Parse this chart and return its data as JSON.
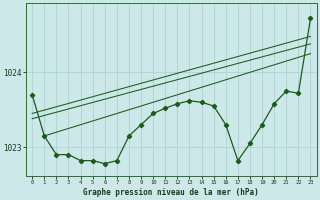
{
  "bg_color": "#cce8e8",
  "grid_color": "#aacece",
  "line_color": "#1a5c1a",
  "xlabel": "Graphe pression niveau de la mer (hPa)",
  "xlim": [
    -0.5,
    23.5
  ],
  "ylim": [
    1022.62,
    1024.92
  ],
  "yticks": [
    1023,
    1024
  ],
  "xticks": [
    0,
    1,
    2,
    3,
    4,
    5,
    6,
    7,
    8,
    9,
    10,
    11,
    12,
    13,
    14,
    15,
    16,
    17,
    18,
    19,
    20,
    21,
    22,
    23
  ],
  "hours": [
    0,
    1,
    2,
    3,
    4,
    5,
    6,
    7,
    8,
    9,
    10,
    11,
    12,
    13,
    14,
    15,
    16,
    17,
    18,
    19,
    20,
    21,
    22,
    23
  ],
  "line_main": [
    1023.7,
    1023.15,
    1022.9,
    1022.9,
    1022.82,
    1022.82,
    1022.78,
    1022.82,
    1023.15,
    1023.3,
    1023.45,
    1023.52,
    1023.58,
    1023.62,
    1023.6,
    1023.55,
    1023.3,
    1022.82,
    1023.05,
    1023.3,
    1023.58,
    1023.75,
    1023.72,
    1024.72
  ],
  "trend1_x": [
    0,
    23
  ],
  "trend1_y": [
    1023.45,
    1024.48
  ],
  "trend2_x": [
    0,
    23
  ],
  "trend2_y": [
    1023.38,
    1024.38
  ],
  "trend3_x": [
    1,
    23
  ],
  "trend3_y": [
    1023.15,
    1024.25
  ]
}
